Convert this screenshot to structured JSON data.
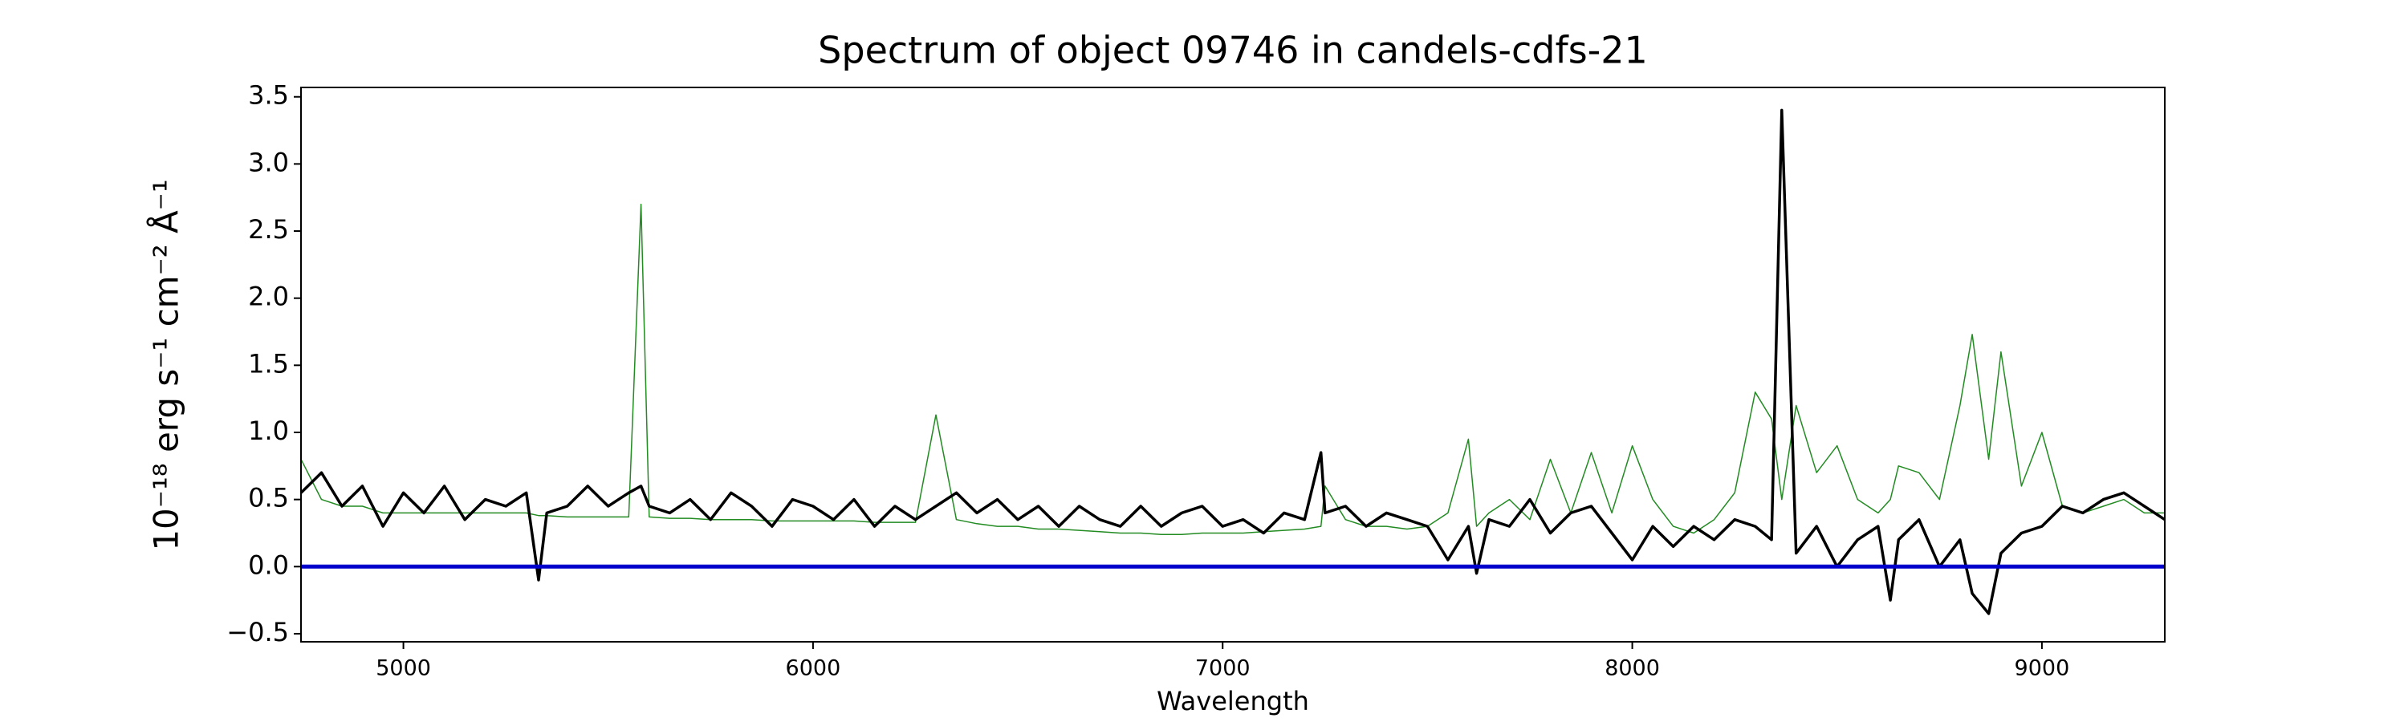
{
  "chart_data": {
    "type": "line",
    "title": "Spectrum of object 09746 in candels-cdfs-21",
    "x_label": "Wavelength",
    "y_label": "10⁻¹⁸ erg s⁻¹ cm⁻² Å⁻¹",
    "x": [
      4750,
      4800,
      4850,
      4900,
      4950,
      5000,
      5050,
      5100,
      5150,
      5200,
      5250,
      5300,
      5330,
      5350,
      5400,
      5450,
      5500,
      5550,
      5580,
      5600,
      5650,
      5700,
      5750,
      5800,
      5850,
      5900,
      5950,
      6000,
      6050,
      6100,
      6150,
      6200,
      6250,
      6300,
      6350,
      6400,
      6450,
      6500,
      6550,
      6600,
      6650,
      6700,
      6750,
      6800,
      6850,
      6900,
      6950,
      7000,
      7050,
      7100,
      7150,
      7200,
      7240,
      7250,
      7300,
      7350,
      7400,
      7450,
      7500,
      7550,
      7600,
      7620,
      7650,
      7700,
      7750,
      7800,
      7850,
      7900,
      7950,
      8000,
      8050,
      8100,
      8150,
      8200,
      8250,
      8300,
      8340,
      8365,
      8400,
      8450,
      8500,
      8550,
      8600,
      8630,
      8650,
      8700,
      8750,
      8800,
      8830,
      8870,
      8900,
      8950,
      9000,
      9050,
      9100,
      9150,
      9200,
      9250,
      9300
    ],
    "series": [
      {
        "color": "#228b22",
        "width": 1.5,
        "values": [
          0.8,
          0.5,
          0.45,
          0.45,
          0.4,
          0.4,
          0.4,
          0.4,
          0.4,
          0.4,
          0.4,
          0.4,
          0.38,
          0.38,
          0.37,
          0.37,
          0.37,
          0.37,
          2.7,
          0.37,
          0.36,
          0.36,
          0.35,
          0.35,
          0.35,
          0.34,
          0.34,
          0.34,
          0.34,
          0.34,
          0.33,
          0.33,
          0.33,
          1.13,
          0.35,
          0.32,
          0.3,
          0.3,
          0.28,
          0.28,
          0.27,
          0.26,
          0.25,
          0.25,
          0.24,
          0.24,
          0.25,
          0.25,
          0.25,
          0.26,
          0.27,
          0.28,
          0.3,
          0.6,
          0.35,
          0.3,
          0.3,
          0.28,
          0.3,
          0.4,
          0.95,
          0.3,
          0.4,
          0.5,
          0.35,
          0.8,
          0.4,
          0.85,
          0.4,
          0.9,
          0.5,
          0.3,
          0.25,
          0.35,
          0.55,
          1.3,
          1.1,
          0.5,
          1.2,
          0.7,
          0.9,
          0.5,
          0.4,
          0.5,
          0.75,
          0.7,
          0.5,
          1.2,
          1.73,
          0.8,
          1.6,
          0.6,
          1.0,
          0.45,
          0.4,
          0.45,
          0.5,
          0.4,
          0.4
        ]
      },
      {
        "color": "#000000",
        "width": 3.5,
        "values": [
          0.55,
          0.7,
          0.45,
          0.6,
          0.3,
          0.55,
          0.4,
          0.6,
          0.35,
          0.5,
          0.45,
          0.55,
          -0.1,
          0.4,
          0.45,
          0.6,
          0.45,
          0.55,
          0.6,
          0.45,
          0.4,
          0.5,
          0.35,
          0.55,
          0.45,
          0.3,
          0.5,
          0.45,
          0.35,
          0.5,
          0.3,
          0.45,
          0.35,
          0.45,
          0.55,
          0.4,
          0.5,
          0.35,
          0.45,
          0.3,
          0.45,
          0.35,
          0.3,
          0.45,
          0.3,
          0.4,
          0.45,
          0.3,
          0.35,
          0.25,
          0.4,
          0.35,
          0.85,
          0.4,
          0.45,
          0.3,
          0.4,
          0.35,
          0.3,
          0.05,
          0.3,
          -0.05,
          0.35,
          0.3,
          0.5,
          0.25,
          0.4,
          0.45,
          0.25,
          0.05,
          0.3,
          0.15,
          0.3,
          0.2,
          0.35,
          0.3,
          0.2,
          3.4,
          0.1,
          0.3,
          0.0,
          0.2,
          0.3,
          -0.25,
          0.2,
          0.35,
          0.0,
          0.2,
          -0.2,
          -0.35,
          0.1,
          0.25,
          0.3,
          0.45,
          0.4,
          0.5,
          0.55,
          0.45,
          0.35
        ]
      }
    ],
    "hline": {
      "value": 0,
      "color": "#0000cc"
    },
    "xlim": [
      4750,
      9300
    ],
    "ylim": [
      -0.56,
      3.57
    ],
    "xticks": [
      5000,
      6000,
      7000,
      8000,
      9000
    ],
    "yticks": [
      {
        "value": -0.5,
        "label": "−0.5"
      },
      {
        "value": 0,
        "label": "0.0"
      },
      {
        "value": 0.5,
        "label": "0.5"
      },
      {
        "value": 1,
        "label": "1.0"
      },
      {
        "value": 1.5,
        "label": "1.5"
      },
      {
        "value": 2,
        "label": "2.0"
      },
      {
        "value": 2.5,
        "label": "2.5"
      },
      {
        "value": 3,
        "label": "3.0"
      },
      {
        "value": 3.5,
        "label": "3.5"
      }
    ]
  }
}
